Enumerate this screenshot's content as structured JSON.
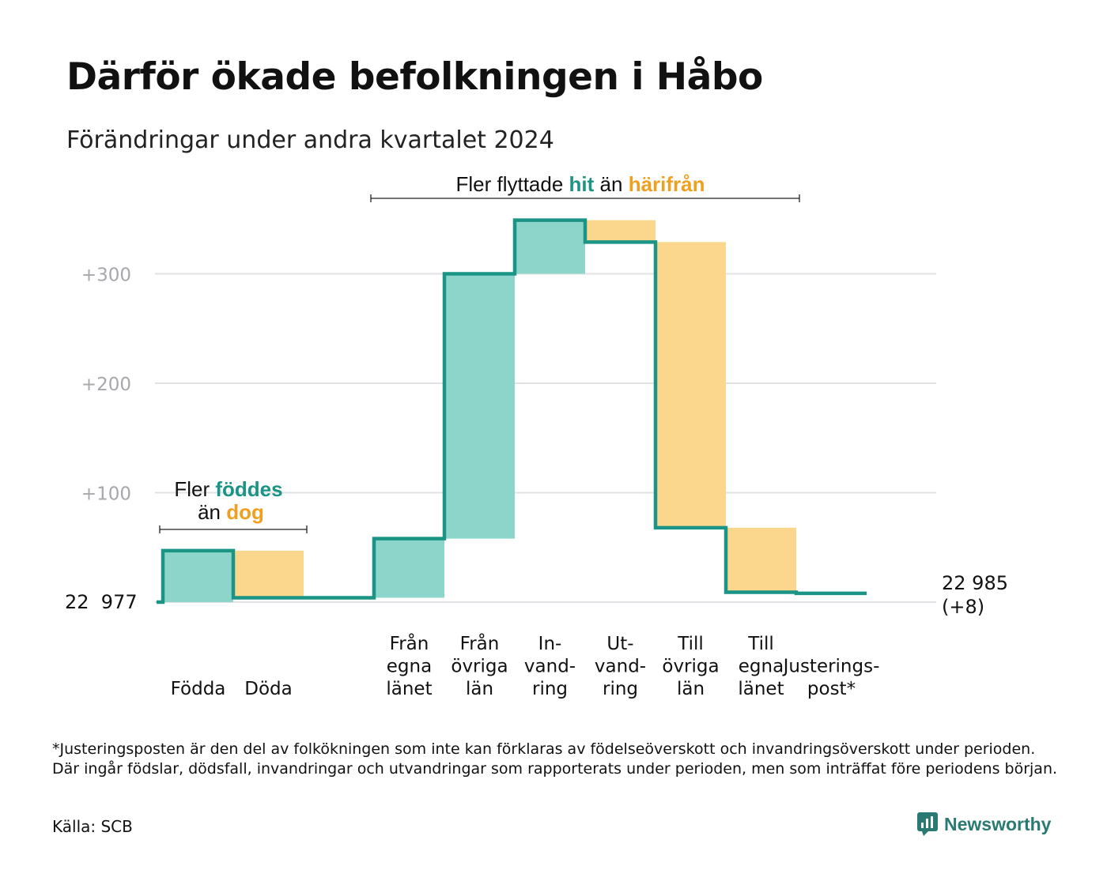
{
  "title": "Därför ökade befolkningen i Håbo",
  "subtitle": "Förändringar under andra kvartalet 2024",
  "colors": {
    "inflow": "#8dd5cb",
    "outflow": "#fbd68d",
    "line": "#1a9484",
    "grid": "#e2e2e6",
    "tick": "#a7a7ad",
    "hit": "#1a9484",
    "harifran": "#f0a020"
  },
  "chart_data": {
    "type": "waterfall",
    "start_label": "22  977",
    "start_value": 22977,
    "end_value": 22985,
    "end_label_line1": "22 985",
    "end_label_line2": "(+8)",
    "yticks": [
      {
        "value": 0,
        "label": ""
      },
      {
        "value": 100,
        "label": "+100"
      },
      {
        "value": 200,
        "label": "+200"
      },
      {
        "value": 300,
        "label": "+300"
      }
    ],
    "ylim": [
      0,
      350
    ],
    "steps": [
      {
        "id": "fodda",
        "label": [
          "Födda"
        ],
        "value": 47,
        "from": 0,
        "to": 47,
        "kind": "in"
      },
      {
        "id": "doda",
        "label": [
          "Döda"
        ],
        "value": -43,
        "from": 47,
        "to": 4,
        "kind": "out"
      },
      {
        "id": "gap",
        "label": [],
        "value": 0,
        "from": 4,
        "to": 4,
        "kind": "none"
      },
      {
        "id": "fran-egna",
        "label": [
          "Från",
          "egna",
          "länet"
        ],
        "value": 54,
        "from": 4,
        "to": 58,
        "kind": "in"
      },
      {
        "id": "fran-ovriga",
        "label": [
          "Från",
          "övriga",
          "län"
        ],
        "value": 242,
        "from": 58,
        "to": 300,
        "kind": "in"
      },
      {
        "id": "invandring",
        "label": [
          "In-",
          "vand-",
          "ring"
        ],
        "value": 49,
        "from": 300,
        "to": 349,
        "kind": "in"
      },
      {
        "id": "utvandring",
        "label": [
          "Ut-",
          "vand-",
          "ring"
        ],
        "value": -20,
        "from": 349,
        "to": 329,
        "kind": "out"
      },
      {
        "id": "till-ovriga",
        "label": [
          "Till",
          "övriga",
          "län"
        ],
        "value": -261,
        "from": 329,
        "to": 68,
        "kind": "out"
      },
      {
        "id": "till-egna",
        "label": [
          "Till",
          "egna",
          "länet"
        ],
        "value": -59,
        "from": 68,
        "to": 9,
        "kind": "out"
      },
      {
        "id": "justeringspost",
        "label": [
          "Justerings-",
          "post*"
        ],
        "value": -1,
        "from": 9,
        "to": 8,
        "kind": "adj"
      }
    ],
    "annotations": {
      "births": {
        "prefix": "Fler ",
        "highlight1": "föddes",
        "line2_prefix": "än ",
        "highlight2": "dog"
      },
      "migration": {
        "prefix": "Fler flyttade ",
        "highlight1": "hit",
        "middle": "än ",
        "highlight2": "härifrån"
      }
    }
  },
  "footnote": "*Justeringsposten är den del av folkökningen som inte kan förklaras av födelseöverskott och invandringsöverskott under perioden. Där ingår födslar, dödsfall, invandringar och utvandringar som rapporterats under perioden, men som inträffat före periodens början.",
  "source": "Källa: SCB",
  "brand": "Newsworthy"
}
